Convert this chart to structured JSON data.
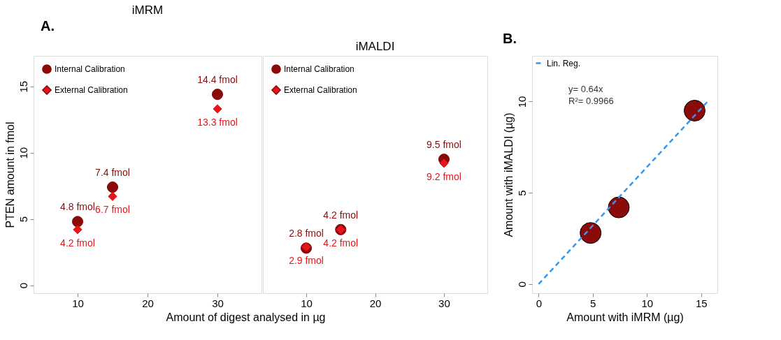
{
  "chart_data": [
    {
      "type": "scatter",
      "title": "iMRM",
      "xlabel": "Amount of digest analysed in µg",
      "ylabel": "PTEN amount in fmol",
      "annotations": [
        "A."
      ],
      "xlim": [
        3.7,
        36.3
      ],
      "xticks": [
        10,
        20,
        30
      ],
      "ylim": [
        -0.6,
        17.3
      ],
      "yticks": [
        0,
        5,
        10,
        15
      ],
      "legend": "top left",
      "series": [
        {
          "name": "Internal Calibration",
          "color": "#8b0a0a",
          "marker": "circle",
          "x": [
            10,
            15,
            30
          ],
          "values": [
            4.8,
            7.4,
            14.4
          ],
          "value_labels": [
            "4.8 fmol",
            "7.4 fmol",
            "14.4 fmol"
          ]
        },
        {
          "name": "External Calibration",
          "color": "#e8141a",
          "marker": "diamond",
          "x": [
            10,
            15,
            30
          ],
          "values": [
            4.2,
            6.7,
            13.3
          ],
          "value_labels": [
            "4.2 fmol",
            "6.7 fmol",
            "13.3 fmol"
          ]
        }
      ]
    },
    {
      "type": "scatter",
      "title": "iMALDI",
      "xlim": [
        3.7,
        36.3
      ],
      "xticks": [
        10,
        20,
        30
      ],
      "ylim": [
        -0.6,
        17.3
      ],
      "yticks": [
        0,
        5,
        10,
        15
      ],
      "tick_labels": "x",
      "legend": "top left",
      "series": [
        {
          "name": "Internal Calibration",
          "color": "#8b0a0a",
          "marker": "circle",
          "x": [
            10,
            15,
            30
          ],
          "values": [
            2.8,
            4.2,
            9.5
          ],
          "value_labels": [
            "2.8 fmol",
            "4.2 fmol",
            "9.5 fmol"
          ]
        },
        {
          "name": "External Calibration",
          "color": "#e8141a",
          "marker": "diamond",
          "x": [
            10,
            15,
            30
          ],
          "values": [
            2.9,
            4.2,
            9.2
          ],
          "value_labels": [
            "2.9 fmol",
            "4.2 fmol",
            "9.2 fmol"
          ]
        }
      ]
    },
    {
      "type": "scatter",
      "title": "B.",
      "xlabel": "Amount with iMRM (µg)",
      "ylabel": "Amount with iMALDI (µg)",
      "annotations": [
        "y= 0.64x",
        "R²= 0.9966"
      ],
      "xlim": [
        -0.6,
        16.5
      ],
      "xticks": [
        0,
        5,
        10,
        15
      ],
      "ylim": [
        -0.5,
        12.5
      ],
      "yticks": [
        0,
        5,
        10
      ],
      "legend": "top left",
      "series": [
        {
          "color": "#8b0a0a",
          "marker": "circle",
          "x": [
            4.8,
            7.4,
            14.4
          ],
          "values": [
            2.8,
            4.2,
            9.5
          ]
        },
        {
          "type": "line",
          "name": "Lin. Reg.",
          "color": "#3399ee",
          "line_style": "dashed",
          "x": [
            0,
            15.6
          ],
          "values": [
            0,
            10
          ]
        }
      ]
    }
  ]
}
